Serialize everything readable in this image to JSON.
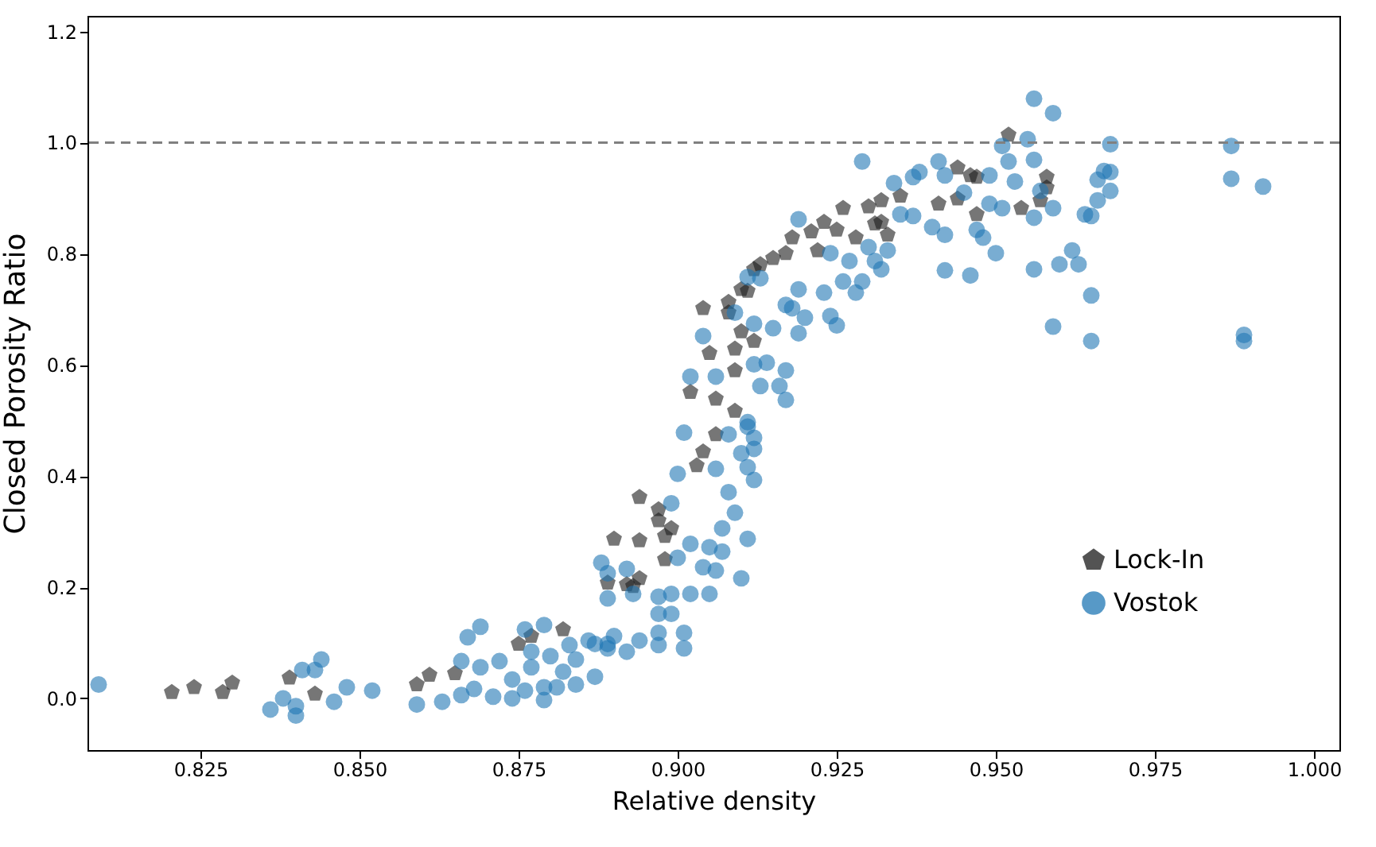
{
  "chart_data": {
    "type": "scatter",
    "xlabel": "Relative density",
    "ylabel": "Closed Porosity Ratio",
    "xlim": [
      0.80725,
      1.004
    ],
    "ylim": [
      -0.093,
      1.228
    ],
    "xticks": [
      {
        "value": 0.825,
        "label": "0.825"
      },
      {
        "value": 0.85,
        "label": "0.850"
      },
      {
        "value": 0.875,
        "label": "0.875"
      },
      {
        "value": 0.9,
        "label": "0.900"
      },
      {
        "value": 0.925,
        "label": "0.925"
      },
      {
        "value": 0.95,
        "label": "0.950"
      },
      {
        "value": 0.975,
        "label": "0.975"
      },
      {
        "value": 1,
        "label": "1.000"
      }
    ],
    "yticks": [
      {
        "value": 0,
        "label": "0.0"
      },
      {
        "value": 0.2,
        "label": "0.2"
      },
      {
        "value": 0.4,
        "label": "0.4"
      },
      {
        "value": 0.6,
        "label": "0.6"
      },
      {
        "value": 0.8,
        "label": "0.8"
      },
      {
        "value": 1,
        "label": "1.0"
      },
      {
        "value": 1.2,
        "label": "1.2"
      }
    ],
    "grid": false,
    "legend": "bottom right",
    "ref_lines": [
      {
        "axis": "y",
        "value": 1,
        "color": "#808080",
        "line_style": "dashed"
      }
    ],
    "series": [
      {
        "name": "Lock-In",
        "color": "#1a1a1a",
        "x": [
          0.8205,
          0.824,
          0.8285,
          0.83,
          0.839,
          0.843,
          0.859,
          0.861,
          0.865,
          0.875,
          0.877,
          0.882,
          0.889,
          0.892,
          0.893,
          0.894,
          0.89,
          0.894,
          0.898,
          0.894,
          0.897,
          0.897,
          0.899,
          0.898,
          0.903,
          0.904,
          0.906,
          0.909,
          0.906,
          0.902,
          0.909,
          0.905,
          0.91,
          0.904,
          0.91,
          0.908,
          0.912,
          0.909,
          0.911,
          0.908,
          0.912,
          0.913,
          0.915,
          0.917,
          0.922,
          0.918,
          0.921,
          0.923,
          0.925,
          0.926,
          0.928,
          0.93,
          0.932,
          0.933,
          0.931,
          0.932,
          0.935,
          0.941,
          0.944,
          0.946,
          0.947,
          0.944,
          0.947,
          0.952,
          0.954,
          0.957,
          0.958,
          0.958
        ],
        "values": [
          0.011,
          0.02,
          0.011,
          0.028,
          0.037,
          0.008,
          0.025,
          0.042,
          0.045,
          0.098,
          0.112,
          0.124,
          0.208,
          0.205,
          0.202,
          0.216,
          0.287,
          0.284,
          0.25,
          0.362,
          0.34,
          0.32,
          0.306,
          0.292,
          0.419,
          0.444,
          0.475,
          0.517,
          0.539,
          0.551,
          0.59,
          0.621,
          0.66,
          0.702,
          0.736,
          0.694,
          0.643,
          0.629,
          0.733,
          0.713,
          0.772,
          0.781,
          0.792,
          0.801,
          0.806,
          0.829,
          0.84,
          0.857,
          0.843,
          0.882,
          0.829,
          0.885,
          0.857,
          0.834,
          0.854,
          0.896,
          0.904,
          0.89,
          0.955,
          0.941,
          0.938,
          0.899,
          0.871,
          1.014,
          0.882,
          0.896,
          0.938,
          0.919
        ]
      },
      {
        "name": "Vostok",
        "color": "#1f77b4",
        "marker": "circle",
        "x": [
          0.809,
          0.836,
          0.838,
          0.84,
          0.84,
          0.841,
          0.843,
          0.844,
          0.846,
          0.848,
          0.852,
          0.859,
          0.863,
          0.866,
          0.867,
          0.869,
          0.869,
          0.872,
          0.866,
          0.868,
          0.871,
          0.874,
          0.874,
          0.876,
          0.877,
          0.879,
          0.879,
          0.876,
          0.879,
          0.877,
          0.88,
          0.881,
          0.882,
          0.883,
          0.884,
          0.884,
          0.887,
          0.887,
          0.889,
          0.886,
          0.89,
          0.894,
          0.897,
          0.901,
          0.901,
          0.897,
          0.889,
          0.892,
          0.888,
          0.892,
          0.889,
          0.889,
          0.893,
          0.897,
          0.899,
          0.897,
          0.899,
          0.902,
          0.905,
          0.904,
          0.906,
          0.907,
          0.91,
          0.905,
          0.902,
          0.9,
          0.907,
          0.911,
          0.909,
          0.908,
          0.912,
          0.911,
          0.912,
          0.91,
          0.912,
          0.911,
          0.908,
          0.906,
          0.901,
          0.9,
          0.899,
          0.913,
          0.916,
          0.917,
          0.917,
          0.914,
          0.912,
          0.904,
          0.902,
          0.906,
          0.918,
          0.92,
          0.919,
          0.911,
          0.909,
          0.912,
          0.915,
          0.924,
          0.925,
          0.917,
          0.919,
          0.923,
          0.926,
          0.929,
          0.928,
          0.924,
          0.927,
          0.93,
          0.931,
          0.932,
          0.933,
          0.919,
          0.929,
          0.934,
          0.937,
          0.935,
          0.937,
          0.913,
          0.911,
          0.938,
          0.941,
          0.942,
          0.945,
          0.949,
          0.949,
          0.951,
          0.952,
          0.953,
          0.951,
          0.955,
          0.956,
          0.956,
          0.959,
          0.957,
          0.959,
          0.956,
          0.94,
          0.942,
          0.947,
          0.948,
          0.95,
          0.942,
          0.946,
          0.956,
          0.964,
          0.965,
          0.962,
          0.96,
          0.963,
          0.965,
          0.959,
          0.965,
          0.966,
          0.968,
          0.968,
          0.968,
          0.967,
          0.966,
          0.987,
          0.987,
          0.992,
          0.989,
          0.989
        ],
        "values": [
          0.025,
          -0.02,
          0.0,
          -0.031,
          -0.014,
          0.051,
          0.051,
          0.07,
          -0.006,
          0.02,
          0.014,
          -0.011,
          -0.006,
          0.067,
          0.11,
          0.129,
          0.056,
          0.067,
          0.006,
          0.017,
          0.003,
          0.0,
          0.034,
          0.014,
          0.056,
          0.02,
          -0.003,
          0.124,
          0.132,
          0.084,
          0.076,
          0.02,
          0.048,
          0.096,
          0.07,
          0.025,
          0.039,
          0.098,
          0.098,
          0.104,
          0.112,
          0.104,
          0.096,
          0.09,
          0.118,
          0.118,
          0.09,
          0.084,
          0.244,
          0.233,
          0.225,
          0.18,
          0.188,
          0.183,
          0.188,
          0.152,
          0.152,
          0.188,
          0.188,
          0.236,
          0.23,
          0.264,
          0.216,
          0.272,
          0.278,
          0.253,
          0.306,
          0.287,
          0.334,
          0.371,
          0.393,
          0.416,
          0.449,
          0.441,
          0.469,
          0.497,
          0.475,
          0.413,
          0.478,
          0.404,
          0.351,
          0.562,
          0.562,
          0.537,
          0.59,
          0.604,
          0.601,
          0.652,
          0.579,
          0.579,
          0.702,
          0.685,
          0.657,
          0.489,
          0.694,
          0.674,
          0.666,
          0.688,
          0.671,
          0.708,
          0.736,
          0.73,
          0.75,
          0.75,
          0.73,
          0.801,
          0.787,
          0.812,
          0.787,
          0.772,
          0.806,
          0.862,
          0.966,
          0.927,
          0.938,
          0.871,
          0.868,
          0.756,
          0.758,
          0.947,
          0.966,
          0.941,
          0.91,
          0.941,
          0.89,
          0.882,
          0.966,
          0.93,
          0.994,
          1.006,
          0.969,
          1.079,
          1.053,
          0.913,
          0.882,
          0.865,
          0.848,
          0.834,
          0.843,
          0.829,
          0.801,
          0.77,
          0.761,
          0.772,
          0.871,
          0.868,
          0.806,
          0.781,
          0.781,
          0.725,
          0.669,
          0.643,
          0.933,
          0.947,
          0.913,
          0.997,
          0.949,
          0.896,
          0.994,
          0.935,
          0.921,
          0.643,
          0.654
        ]
      }
    ]
  }
}
